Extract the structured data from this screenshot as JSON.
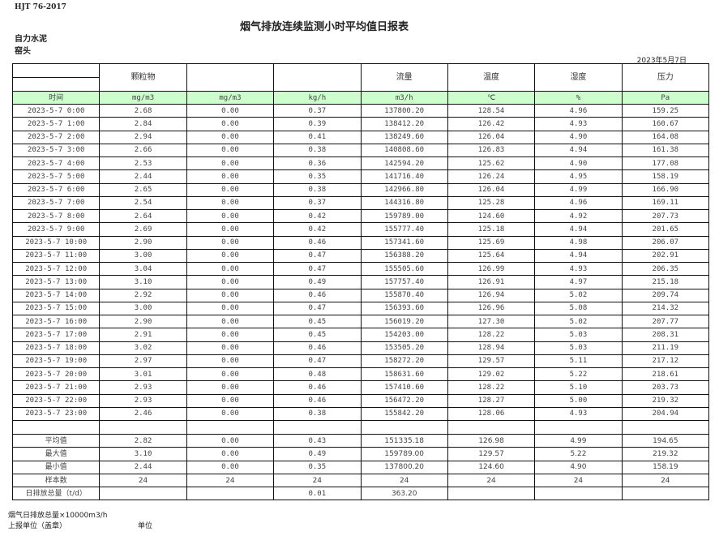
{
  "header": {
    "standard": "HJT   76-2017",
    "title": "烟气排放连续监测小时平均值日报表",
    "company": "自力水泥",
    "source": "窑头",
    "date": "2023年5月7日"
  },
  "columns": [
    {
      "name": "",
      "unit": "时间"
    },
    {
      "name": "颗粒物",
      "unit": "mg/m3"
    },
    {
      "name": "",
      "unit": "mg/m3"
    },
    {
      "name": "",
      "unit": "kg/h"
    },
    {
      "name": "流量",
      "unit": "m3/h"
    },
    {
      "name": "温度",
      "unit": "℃"
    },
    {
      "name": "湿度",
      "unit": "%"
    },
    {
      "name": "压力",
      "unit": "Pa"
    }
  ],
  "rows": [
    [
      "2023-5-7 0:00",
      "2.68",
      "0.00",
      "0.37",
      "137800.20",
      "128.54",
      "4.96",
      "159.25"
    ],
    [
      "2023-5-7 1:00",
      "2.84",
      "0.00",
      "0.39",
      "138412.20",
      "126.42",
      "4.93",
      "160.67"
    ],
    [
      "2023-5-7 2:00",
      "2.94",
      "0.00",
      "0.41",
      "138249.60",
      "126.04",
      "4.90",
      "164.08"
    ],
    [
      "2023-5-7 3:00",
      "2.66",
      "0.00",
      "0.38",
      "140808.60",
      "126.83",
      "4.94",
      "161.38"
    ],
    [
      "2023-5-7 4:00",
      "2.53",
      "0.00",
      "0.36",
      "142594.20",
      "125.62",
      "4.90",
      "177.08"
    ],
    [
      "2023-5-7 5:00",
      "2.44",
      "0.00",
      "0.35",
      "141716.40",
      "126.24",
      "4.95",
      "158.19"
    ],
    [
      "2023-5-7 6:00",
      "2.65",
      "0.00",
      "0.38",
      "142966.80",
      "126.04",
      "4.99",
      "166.90"
    ],
    [
      "2023-5-7 7:00",
      "2.54",
      "0.00",
      "0.37",
      "144316.80",
      "125.28",
      "4.96",
      "169.11"
    ],
    [
      "2023-5-7 8:00",
      "2.64",
      "0.00",
      "0.42",
      "159789.00",
      "124.60",
      "4.92",
      "207.73"
    ],
    [
      "2023-5-7 9:00",
      "2.69",
      "0.00",
      "0.42",
      "155777.40",
      "125.18",
      "4.94",
      "201.65"
    ],
    [
      "2023-5-7 10:00",
      "2.90",
      "0.00",
      "0.46",
      "157341.60",
      "125.69",
      "4.98",
      "206.07"
    ],
    [
      "2023-5-7 11:00",
      "3.00",
      "0.00",
      "0.47",
      "156388.20",
      "125.64",
      "4.94",
      "202.91"
    ],
    [
      "2023-5-7 12:00",
      "3.04",
      "0.00",
      "0.47",
      "155505.60",
      "126.99",
      "4.93",
      "206.35"
    ],
    [
      "2023-5-7 13:00",
      "3.10",
      "0.00",
      "0.49",
      "157757.40",
      "126.91",
      "4.97",
      "215.18"
    ],
    [
      "2023-5-7 14:00",
      "2.92",
      "0.00",
      "0.46",
      "155870.40",
      "126.94",
      "5.02",
      "209.74"
    ],
    [
      "2023-5-7 15:00",
      "3.00",
      "0.00",
      "0.47",
      "156393.60",
      "126.96",
      "5.08",
      "214.32"
    ],
    [
      "2023-5-7 16:00",
      "2.90",
      "0.00",
      "0.45",
      "156019.20",
      "127.30",
      "5.02",
      "207.77"
    ],
    [
      "2023-5-7 17:00",
      "2.91",
      "0.00",
      "0.45",
      "154203.00",
      "128.22",
      "5.03",
      "208.31"
    ],
    [
      "2023-5-7 18:00",
      "3.02",
      "0.00",
      "0.46",
      "153505.20",
      "128.94",
      "5.03",
      "211.19"
    ],
    [
      "2023-5-7 19:00",
      "2.97",
      "0.00",
      "0.47",
      "158272.20",
      "129.57",
      "5.11",
      "217.12"
    ],
    [
      "2023-5-7 20:00",
      "3.01",
      "0.00",
      "0.48",
      "158631.60",
      "129.02",
      "5.22",
      "218.61"
    ],
    [
      "2023-5-7 21:00",
      "2.93",
      "0.00",
      "0.46",
      "157410.60",
      "128.22",
      "5.10",
      "203.73"
    ],
    [
      "2023-5-7 22:00",
      "2.93",
      "0.00",
      "0.46",
      "156472.20",
      "128.27",
      "5.00",
      "219.32"
    ],
    [
      "2023-5-7 23:00",
      "2.46",
      "0.00",
      "0.38",
      "155842.20",
      "128.06",
      "4.93",
      "204.94"
    ]
  ],
  "stats": [
    [
      "平均值",
      "2.82",
      "0.00",
      "0.43",
      "151335.18",
      "126.98",
      "4.99",
      "194.65"
    ],
    [
      "最大值",
      "3.10",
      "0.00",
      "0.49",
      "159789.00",
      "129.57",
      "5.22",
      "219.32"
    ],
    [
      "最小值",
      "2.44",
      "0.00",
      "0.35",
      "137800.20",
      "124.60",
      "4.90",
      "158.19"
    ],
    [
      "样本数",
      "24",
      "24",
      "24",
      "24",
      "24",
      "24",
      "24"
    ],
    [
      "日排放总量（t/d）",
      "",
      "",
      "0.01",
      "363.20",
      "",
      "",
      ""
    ]
  ],
  "footer": {
    "note": "烟气日排放总量×10000m3/h",
    "reporter_label": "上报单位（盖章）",
    "unit_label": "单位"
  }
}
